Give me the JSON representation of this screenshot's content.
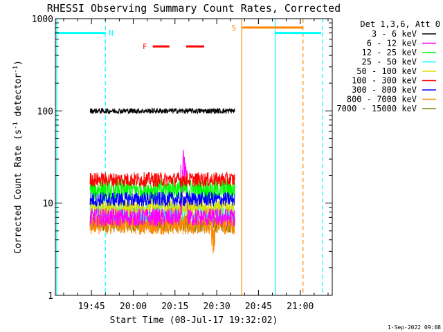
{
  "chart_data": {
    "type": "line",
    "title": "RHESSI Observing Summary Count Rates, Corrected",
    "ylabel": "Corrected Count Rate (s",
    "ylabel_sup": "-1",
    "ylabel_mid": " detector",
    "ylabel_sup2": "-1",
    "ylabel_end": ")",
    "xlabel": "Start Time (08-Jul-17 19:32:02)",
    "y_scale": "log",
    "ylim": [
      1,
      1000
    ],
    "x_range": [
      "19:32:02",
      "21:11:30"
    ],
    "x_ticks": [
      "19:45",
      "20:00",
      "20:15",
      "20:30",
      "20:45",
      "21:00"
    ],
    "y_ticks": [
      "1",
      "10",
      "100",
      "1000"
    ],
    "legend_title": "Det 1,3,6, Att 0",
    "legend_position": "right",
    "series": [
      {
        "name": "3 - 6 keV",
        "color": "#000000",
        "level": 100,
        "start": "19:44:30",
        "end": "20:36:30",
        "noise": 0.03
      },
      {
        "name": "6 - 12 keV",
        "color": "#ff00ff",
        "level": 7,
        "start": "19:44:30",
        "end": "20:36:30",
        "noise": 0.1
      },
      {
        "name": "12 - 25 keV",
        "color": "#00ff00",
        "level": 14,
        "start": "19:44:30",
        "end": "20:36:30",
        "noise": 0.12
      },
      {
        "name": "25 - 50 keV",
        "color": "#00ffff",
        "level": 8,
        "start": "19:44:30",
        "end": "20:36:30",
        "noise": 0.1
      },
      {
        "name": "50 - 100 keV",
        "color": "#dddd00",
        "level": 9,
        "start": "19:44:30",
        "end": "20:36:30",
        "noise": 0.1
      },
      {
        "name": "100 - 300 keV",
        "color": "#ff0000",
        "level": 18,
        "start": "19:44:30",
        "end": "20:36:30",
        "noise": 0.08
      },
      {
        "name": "300 - 800 keV",
        "color": "#0000ff",
        "level": 11,
        "start": "19:44:30",
        "end": "20:36:30",
        "noise": 0.08
      },
      {
        "name": "800 - 7000 keV",
        "color": "#ff8800",
        "level": 6,
        "start": "19:44:30",
        "end": "20:36:30",
        "noise": 0.12
      },
      {
        "name": "7000 - 15000 keV",
        "color": "#808000",
        "level": 6,
        "start": "19:44:30",
        "end": "20:36:30",
        "noise": 0.1
      }
    ],
    "flag_bars": [
      {
        "label": "N",
        "color": "#00ffff",
        "level": 700,
        "start": "19:32:02",
        "end": "19:50:00",
        "dashed": false
      },
      {
        "label": "",
        "color": "#00ffff",
        "level": 700,
        "start": "20:51:00",
        "end": "21:07:30",
        "dashed": false
      },
      {
        "label": "F",
        "color": "#ff0000",
        "level": 500,
        "start": "20:07:00",
        "end": "20:13:00",
        "dashed": false
      },
      {
        "label": "",
        "color": "#ff0000",
        "level": 500,
        "start": "20:19:00",
        "end": "20:25:30",
        "dashed": false
      },
      {
        "label": "S",
        "color": "#ff8800",
        "level": 800,
        "start": "20:39:00",
        "end": "21:01:00",
        "dashed": false
      }
    ],
    "vlines": [
      {
        "time": "19:32:30",
        "color": "#00ffff",
        "dashed": false
      },
      {
        "time": "19:50:00",
        "color": "#00ffff",
        "dashed": true
      },
      {
        "time": "20:39:00",
        "color": "#ff8800",
        "dashed": false
      },
      {
        "time": "20:51:00",
        "color": "#00ffff",
        "dashed": false
      },
      {
        "time": "21:01:00",
        "color": "#ff8800",
        "dashed": true
      },
      {
        "time": "21:08:00",
        "color": "#00ffff",
        "dashed": true
      }
    ]
  },
  "timestamp": "1-Sep-2022 09:08"
}
